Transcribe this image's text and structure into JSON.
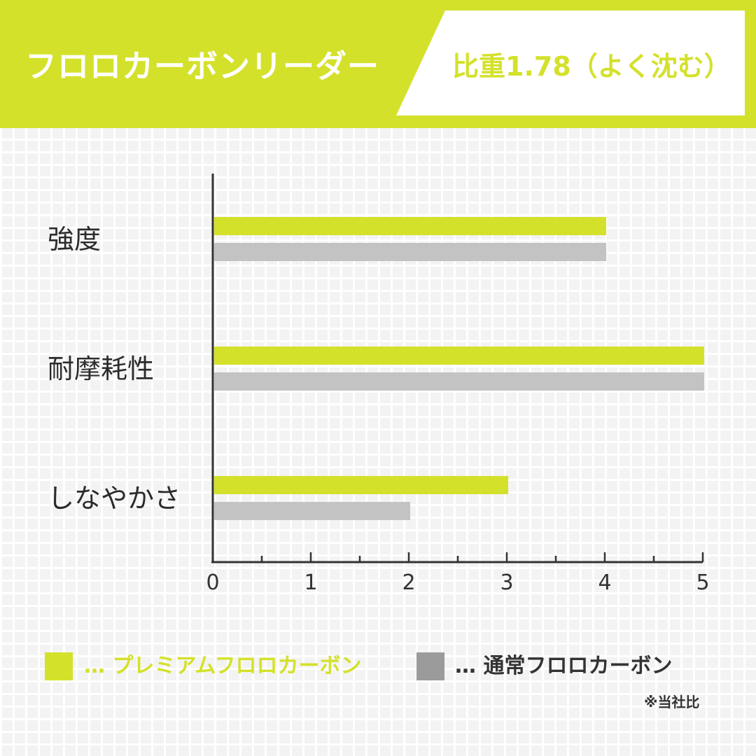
{
  "header": {
    "title": "フロロカーボンリーダー",
    "subtitle": "比重1.78（よく沈む）"
  },
  "colors": {
    "accent": "#d4e12b",
    "grey_bar": "#c3c3c3",
    "grey_swatch": "#9b9b9b",
    "axis": "#333333"
  },
  "chart_data": {
    "type": "bar",
    "orientation": "horizontal",
    "categories": [
      "強度",
      "耐摩耗性",
      "しなやかさ"
    ],
    "series": [
      {
        "name": "プレミアムフロロカーボン",
        "values": [
          4,
          5,
          3
        ]
      },
      {
        "name": "通常フロロカーボン",
        "values": [
          4,
          5,
          2
        ]
      }
    ],
    "xlim": [
      0,
      5
    ],
    "x_ticks": [
      "0",
      "1",
      "2",
      "3",
      "4",
      "5"
    ],
    "grid": false,
    "legend_position": "bottom"
  },
  "legend": {
    "premium": "… プレミアムフロロカーボン",
    "normal": "… 通常フロロカーボン"
  },
  "note": "※当社比"
}
